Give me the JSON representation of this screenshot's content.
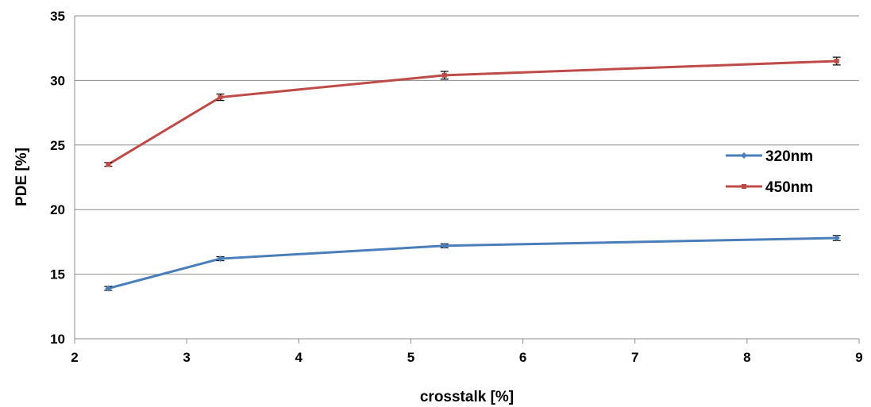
{
  "chart_data": {
    "type": "line",
    "title": "",
    "xlabel": "crosstalk [%]",
    "ylabel": "PDE [%]",
    "xlim": [
      2,
      9
    ],
    "ylim": [
      10,
      35
    ],
    "x_ticks": [
      2,
      3,
      4,
      5,
      6,
      7,
      8,
      9
    ],
    "y_ticks": [
      10,
      15,
      20,
      25,
      30,
      35
    ],
    "grid": "horizontal",
    "legend_position": "right",
    "series": [
      {
        "name": "320nm",
        "color": "#4a7ebb",
        "marker": "diamond",
        "x": [
          2.3,
          3.3,
          5.3,
          8.8
        ],
        "y": [
          13.9,
          16.2,
          17.2,
          17.8
        ],
        "error": [
          0.15,
          0.15,
          0.15,
          0.2
        ]
      },
      {
        "name": "450nm",
        "color": "#be4b48",
        "marker": "square",
        "x": [
          2.3,
          3.3,
          5.3,
          8.8
        ],
        "y": [
          23.5,
          28.7,
          30.4,
          31.5
        ],
        "error": [
          0.15,
          0.25,
          0.3,
          0.3
        ]
      }
    ]
  }
}
